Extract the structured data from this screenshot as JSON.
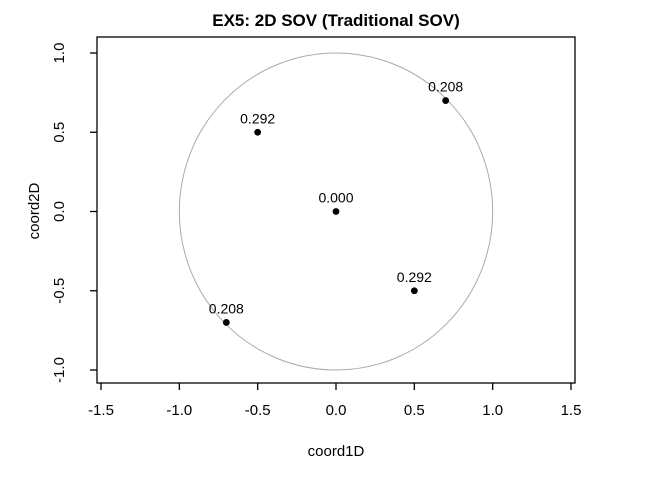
{
  "chart_data": {
    "type": "scatter",
    "title": "EX5: 2D SOV (Traditional SOV)",
    "xlabel": "coord1D",
    "ylabel": "coord2D",
    "xlim": [
      -1.5,
      1.5
    ],
    "ylim": [
      -1.0,
      1.0
    ],
    "x_ticks": [
      {
        "value": -1.5,
        "label": "-1.5"
      },
      {
        "value": -1.0,
        "label": "-1.0"
      },
      {
        "value": -0.5,
        "label": "-0.5"
      },
      {
        "value": 0.0,
        "label": "0.0"
      },
      {
        "value": 0.5,
        "label": "0.5"
      },
      {
        "value": 1.0,
        "label": "1.0"
      },
      {
        "value": 1.5,
        "label": "1.5"
      }
    ],
    "y_ticks": [
      {
        "value": -1.0,
        "label": "-1.0"
      },
      {
        "value": -0.5,
        "label": "-0.5"
      },
      {
        "value": 0.0,
        "label": "0.0"
      },
      {
        "value": 0.5,
        "label": "0.5"
      },
      {
        "value": 1.0,
        "label": "1.0"
      }
    ],
    "grid": false,
    "legend": false,
    "points": [
      {
        "x": 0.0,
        "y": 0.0,
        "label": "0.000"
      },
      {
        "x": -0.5,
        "y": 0.5,
        "label": "0.292"
      },
      {
        "x": 0.7,
        "y": 0.7,
        "label": "0.208"
      },
      {
        "x": 0.5,
        "y": -0.5,
        "label": "0.292"
      },
      {
        "x": -0.7,
        "y": -0.7,
        "label": "0.208"
      }
    ],
    "reference_circle": {
      "cx": 0.0,
      "cy": 0.0,
      "r": 1.0,
      "color": "#aaaaaa"
    },
    "point_color": "#000000"
  }
}
